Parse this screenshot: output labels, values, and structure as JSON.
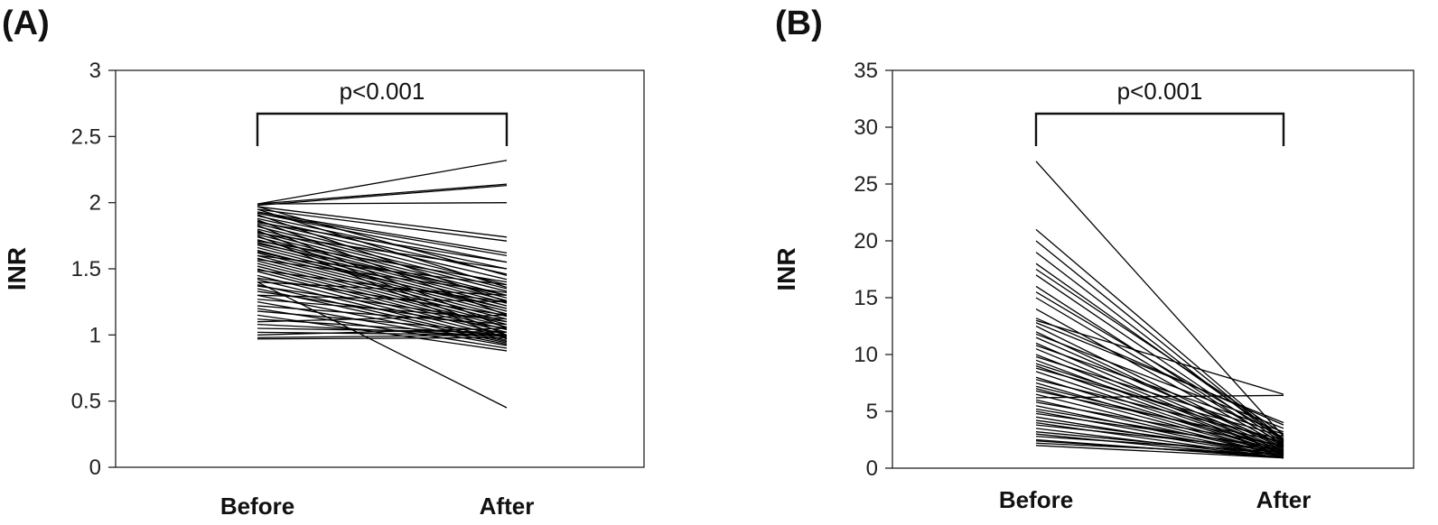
{
  "chart_data": [
    {
      "panel_label": "(A)",
      "type": "line",
      "categories": [
        "Before",
        "After"
      ],
      "ylabel": "INR",
      "ylim": [
        0,
        3
      ],
      "yticks": [
        "0",
        "0.5",
        "1",
        "1.5",
        "2",
        "2.5",
        "3"
      ],
      "significance": "p<0.001",
      "grid": false,
      "series": [
        {
          "values": [
            1.99,
            2.32
          ]
        },
        {
          "values": [
            1.99,
            2.14
          ]
        },
        {
          "values": [
            1.98,
            2.13
          ]
        },
        {
          "values": [
            1.99,
            2.0
          ]
        },
        {
          "values": [
            1.97,
            1.74
          ]
        },
        {
          "values": [
            1.95,
            1.71
          ]
        },
        {
          "values": [
            1.93,
            1.62
          ]
        },
        {
          "values": [
            1.92,
            1.55
          ]
        },
        {
          "values": [
            1.9,
            1.5
          ]
        },
        {
          "values": [
            1.88,
            1.46
          ]
        },
        {
          "values": [
            1.86,
            1.42
          ]
        },
        {
          "values": [
            1.84,
            1.38
          ]
        },
        {
          "values": [
            1.82,
            1.35
          ]
        },
        {
          "values": [
            1.8,
            1.33
          ]
        },
        {
          "values": [
            1.78,
            1.3
          ]
        },
        {
          "values": [
            1.76,
            1.28
          ]
        },
        {
          "values": [
            1.74,
            1.26
          ]
        },
        {
          "values": [
            1.72,
            1.24
          ]
        },
        {
          "values": [
            1.7,
            1.22
          ]
        },
        {
          "values": [
            1.68,
            1.2
          ]
        },
        {
          "values": [
            1.66,
            1.18
          ]
        },
        {
          "values": [
            1.64,
            1.16
          ]
        },
        {
          "values": [
            1.62,
            1.14
          ]
        },
        {
          "values": [
            1.6,
            1.12
          ]
        },
        {
          "values": [
            1.58,
            1.1
          ]
        },
        {
          "values": [
            1.56,
            1.08
          ]
        },
        {
          "values": [
            1.54,
            1.06
          ]
        },
        {
          "values": [
            1.52,
            1.04
          ]
        },
        {
          "values": [
            1.5,
            1.02
          ]
        },
        {
          "values": [
            1.48,
            1.0
          ]
        },
        {
          "values": [
            1.45,
            0.98
          ]
        },
        {
          "values": [
            1.42,
            0.96
          ]
        },
        {
          "values": [
            1.38,
            0.95
          ]
        },
        {
          "values": [
            1.35,
            0.94
          ]
        },
        {
          "values": [
            1.3,
            0.93
          ]
        },
        {
          "values": [
            1.25,
            0.92
          ]
        },
        {
          "values": [
            1.2,
            0.9
          ]
        },
        {
          "values": [
            1.15,
            0.88
          ]
        },
        {
          "values": [
            1.97,
            1.45
          ]
        },
        {
          "values": [
            1.95,
            1.36
          ]
        },
        {
          "values": [
            1.91,
            1.25
          ]
        },
        {
          "values": [
            1.87,
            1.15
          ]
        },
        {
          "values": [
            1.83,
            1.05
          ]
        },
        {
          "values": [
            1.79,
            1.0
          ]
        },
        {
          "values": [
            1.75,
            0.97
          ]
        },
        {
          "values": [
            1.69,
            1.3
          ]
        },
        {
          "values": [
            1.63,
            1.2
          ]
        },
        {
          "values": [
            1.57,
            1.32
          ]
        },
        {
          "values": [
            1.49,
            1.25
          ]
        },
        {
          "values": [
            1.43,
            1.15
          ]
        },
        {
          "values": [
            1.37,
            1.1
          ]
        },
        {
          "values": [
            1.33,
            1.05
          ]
        },
        {
          "values": [
            1.27,
            1.12
          ]
        },
        {
          "values": [
            1.22,
            1.08
          ]
        },
        {
          "values": [
            1.18,
            1.02
          ]
        },
        {
          "values": [
            1.12,
            1.0
          ]
        },
        {
          "values": [
            1.08,
            0.99
          ]
        },
        {
          "values": [
            1.05,
            1.02
          ]
        },
        {
          "values": [
            1.02,
            1.0
          ]
        },
        {
          "values": [
            1.0,
            1.05
          ]
        },
        {
          "values": [
            0.98,
            1.0
          ]
        },
        {
          "values": [
            0.97,
            0.98
          ]
        },
        {
          "values": [
            1.92,
            1.6
          ]
        },
        {
          "values": [
            1.85,
            1.55
          ]
        },
        {
          "values": [
            1.77,
            1.5
          ]
        },
        {
          "values": [
            1.71,
            1.4
          ]
        },
        {
          "values": [
            1.6,
            1.38
          ]
        },
        {
          "values": [
            1.4,
            1.3
          ]
        },
        {
          "values": [
            1.3,
            1.25
          ]
        },
        {
          "values": [
            1.1,
            1.15
          ]
        },
        {
          "values": [
            1.4,
            0.45
          ]
        }
      ]
    },
    {
      "panel_label": "(B)",
      "type": "line",
      "categories": [
        "Before",
        "After"
      ],
      "ylabel": "INR",
      "ylim": [
        0,
        35
      ],
      "yticks": [
        "0",
        "5",
        "10",
        "15",
        "20",
        "25",
        "30",
        "35"
      ],
      "significance": "p<0.001",
      "grid": false,
      "series": [
        {
          "values": [
            27.0,
            2.8
          ]
        },
        {
          "values": [
            21.0,
            2.5
          ]
        },
        {
          "values": [
            20.0,
            2.4
          ]
        },
        {
          "values": [
            19.0,
            2.3
          ]
        },
        {
          "values": [
            18.0,
            2.6
          ]
        },
        {
          "values": [
            17.0,
            2.2
          ]
        },
        {
          "values": [
            16.0,
            2.0
          ]
        },
        {
          "values": [
            15.0,
            2.1
          ]
        },
        {
          "values": [
            14.0,
            1.9
          ]
        },
        {
          "values": [
            13.0,
            6.5
          ]
        },
        {
          "values": [
            12.5,
            1.8
          ]
        },
        {
          "values": [
            12.0,
            1.7
          ]
        },
        {
          "values": [
            11.5,
            2.0
          ]
        },
        {
          "values": [
            11.0,
            1.6
          ]
        },
        {
          "values": [
            10.5,
            1.5
          ]
        },
        {
          "values": [
            10.0,
            1.5
          ]
        },
        {
          "values": [
            9.5,
            1.4
          ]
        },
        {
          "values": [
            9.0,
            1.4
          ]
        },
        {
          "values": [
            8.5,
            1.3
          ]
        },
        {
          "values": [
            8.0,
            1.3
          ]
        },
        {
          "values": [
            7.5,
            1.2
          ]
        },
        {
          "values": [
            7.0,
            1.2
          ]
        },
        {
          "values": [
            6.5,
            1.1
          ]
        },
        {
          "values": [
            6.0,
            1.1
          ]
        },
        {
          "values": [
            5.5,
            1.0
          ]
        },
        {
          "values": [
            5.0,
            1.0
          ]
        },
        {
          "values": [
            4.5,
            1.0
          ]
        },
        {
          "values": [
            4.0,
            0.9
          ]
        },
        {
          "values": [
            3.5,
            0.9
          ]
        },
        {
          "values": [
            3.0,
            0.9
          ]
        },
        {
          "values": [
            2.5,
            0.9
          ]
        },
        {
          "values": [
            2.0,
            0.9
          ]
        },
        {
          "values": [
            12.8,
            4.0
          ]
        },
        {
          "values": [
            11.8,
            3.5
          ]
        },
        {
          "values": [
            10.8,
            3.2
          ]
        },
        {
          "values": [
            9.8,
            3.0
          ]
        },
        {
          "values": [
            8.8,
            2.8
          ]
        },
        {
          "values": [
            7.8,
            2.5
          ]
        },
        {
          "values": [
            6.8,
            2.3
          ]
        },
        {
          "values": [
            5.8,
            2.0
          ]
        },
        {
          "values": [
            4.8,
            1.8
          ]
        },
        {
          "values": [
            3.8,
            1.6
          ]
        },
        {
          "values": [
            2.8,
            1.4
          ]
        },
        {
          "values": [
            2.2,
            1.2
          ]
        },
        {
          "values": [
            6.2,
            6.4
          ]
        },
        {
          "values": [
            13.2,
            3.8
          ]
        },
        {
          "values": [
            17.5,
            3.0
          ]
        },
        {
          "values": [
            15.5,
            2.6
          ]
        },
        {
          "values": [
            9.2,
            2.2
          ]
        },
        {
          "values": [
            7.2,
            1.9
          ]
        },
        {
          "values": [
            5.2,
            1.6
          ]
        },
        {
          "values": [
            4.2,
            1.4
          ]
        },
        {
          "values": [
            3.2,
            1.2
          ]
        },
        {
          "values": [
            2.4,
            1.0
          ]
        }
      ]
    }
  ]
}
